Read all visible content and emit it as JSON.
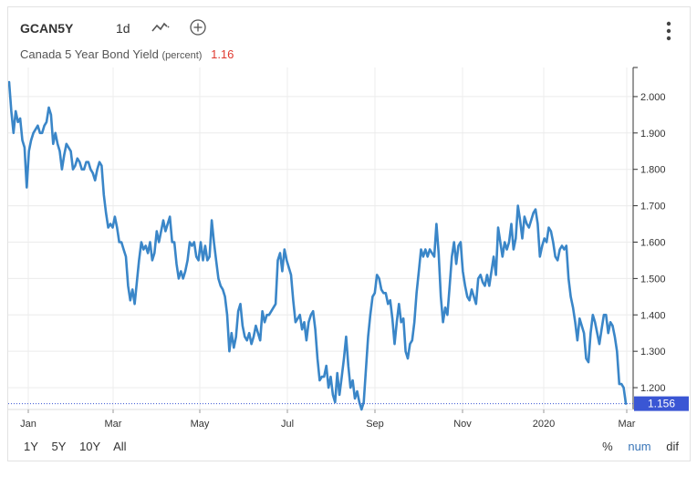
{
  "header": {
    "ticker": "GCAN5Y",
    "interval": "1d",
    "title": "Canada 5 Year Bond Yield",
    "unit": "(percent)",
    "last_value": "1.16"
  },
  "ranges": [
    "1Y",
    "5Y",
    "10Y",
    "All"
  ],
  "modes": {
    "percent": "%",
    "num": "num",
    "dif": "dif"
  },
  "colors": {
    "line": "#3a86c8",
    "last_badge": "#3a56d4",
    "last_text": "#e0392f"
  },
  "chart_data": {
    "type": "line",
    "title": "Canada 5 Year Bond Yield",
    "ylabel": "",
    "ylim": [
      1.14,
      2.08
    ],
    "yticks": [
      "1.200",
      "1.300",
      "1.400",
      "1.500",
      "1.600",
      "1.700",
      "1.800",
      "1.900",
      "2.000"
    ],
    "xticks": [
      "Jan",
      "Mar",
      "May",
      "Jul",
      "Sep",
      "Nov",
      "2020",
      "Mar"
    ],
    "last_label": "1.156",
    "grid": true,
    "series": [
      {
        "values": [
          2.04,
          1.96,
          1.9,
          1.96,
          1.93,
          1.94,
          1.88,
          1.86,
          1.75,
          1.85,
          1.88,
          1.9,
          1.91,
          1.92,
          1.9,
          1.9,
          1.92,
          1.93,
          1.97,
          1.95,
          1.87,
          1.9,
          1.87,
          1.85,
          1.8,
          1.84,
          1.87,
          1.86,
          1.85,
          1.8,
          1.81,
          1.83,
          1.82,
          1.8,
          1.8,
          1.82,
          1.82,
          1.8,
          1.79,
          1.77,
          1.8,
          1.82,
          1.81,
          1.73,
          1.68,
          1.64,
          1.65,
          1.64,
          1.67,
          1.64,
          1.6,
          1.6,
          1.58,
          1.56,
          1.48,
          1.44,
          1.47,
          1.43,
          1.49,
          1.55,
          1.6,
          1.58,
          1.59,
          1.57,
          1.6,
          1.55,
          1.57,
          1.63,
          1.6,
          1.63,
          1.66,
          1.63,
          1.65,
          1.67,
          1.6,
          1.6,
          1.54,
          1.5,
          1.52,
          1.5,
          1.52,
          1.55,
          1.6,
          1.59,
          1.6,
          1.56,
          1.55,
          1.6,
          1.55,
          1.59,
          1.55,
          1.56,
          1.66,
          1.6,
          1.55,
          1.5,
          1.48,
          1.47,
          1.45,
          1.4,
          1.3,
          1.35,
          1.31,
          1.34,
          1.41,
          1.43,
          1.37,
          1.34,
          1.33,
          1.35,
          1.32,
          1.34,
          1.37,
          1.35,
          1.33,
          1.41,
          1.38,
          1.4,
          1.4,
          1.41,
          1.42,
          1.43,
          1.55,
          1.57,
          1.52,
          1.58,
          1.55,
          1.53,
          1.51,
          1.44,
          1.38,
          1.39,
          1.4,
          1.36,
          1.38,
          1.33,
          1.38,
          1.4,
          1.41,
          1.36,
          1.28,
          1.22,
          1.23,
          1.23,
          1.26,
          1.2,
          1.23,
          1.18,
          1.16,
          1.24,
          1.18,
          1.23,
          1.28,
          1.34,
          1.26,
          1.2,
          1.22,
          1.17,
          1.19,
          1.16,
          1.14,
          1.16,
          1.25,
          1.34,
          1.4,
          1.45,
          1.46,
          1.51,
          1.5,
          1.47,
          1.46,
          1.46,
          1.43,
          1.44,
          1.39,
          1.32,
          1.38,
          1.43,
          1.38,
          1.39,
          1.3,
          1.28,
          1.32,
          1.33,
          1.38,
          1.46,
          1.52,
          1.58,
          1.56,
          1.58,
          1.56,
          1.58,
          1.57,
          1.56,
          1.65,
          1.57,
          1.45,
          1.38,
          1.42,
          1.4,
          1.48,
          1.56,
          1.6,
          1.54,
          1.59,
          1.6,
          1.52,
          1.48,
          1.45,
          1.44,
          1.47,
          1.45,
          1.43,
          1.5,
          1.51,
          1.49,
          1.48,
          1.51,
          1.48,
          1.52,
          1.56,
          1.51,
          1.64,
          1.6,
          1.56,
          1.6,
          1.58,
          1.6,
          1.65,
          1.58,
          1.61,
          1.7,
          1.66,
          1.61,
          1.67,
          1.65,
          1.64,
          1.66,
          1.68,
          1.69,
          1.65,
          1.56,
          1.59,
          1.61,
          1.6,
          1.64,
          1.63,
          1.6,
          1.56,
          1.55,
          1.58,
          1.59,
          1.58,
          1.59,
          1.5,
          1.45,
          1.42,
          1.38,
          1.33,
          1.39,
          1.37,
          1.35,
          1.28,
          1.27,
          1.35,
          1.4,
          1.38,
          1.35,
          1.32,
          1.36,
          1.4,
          1.4,
          1.35,
          1.38,
          1.37,
          1.34,
          1.3,
          1.21,
          1.21,
          1.2,
          1.156
        ]
      }
    ]
  }
}
